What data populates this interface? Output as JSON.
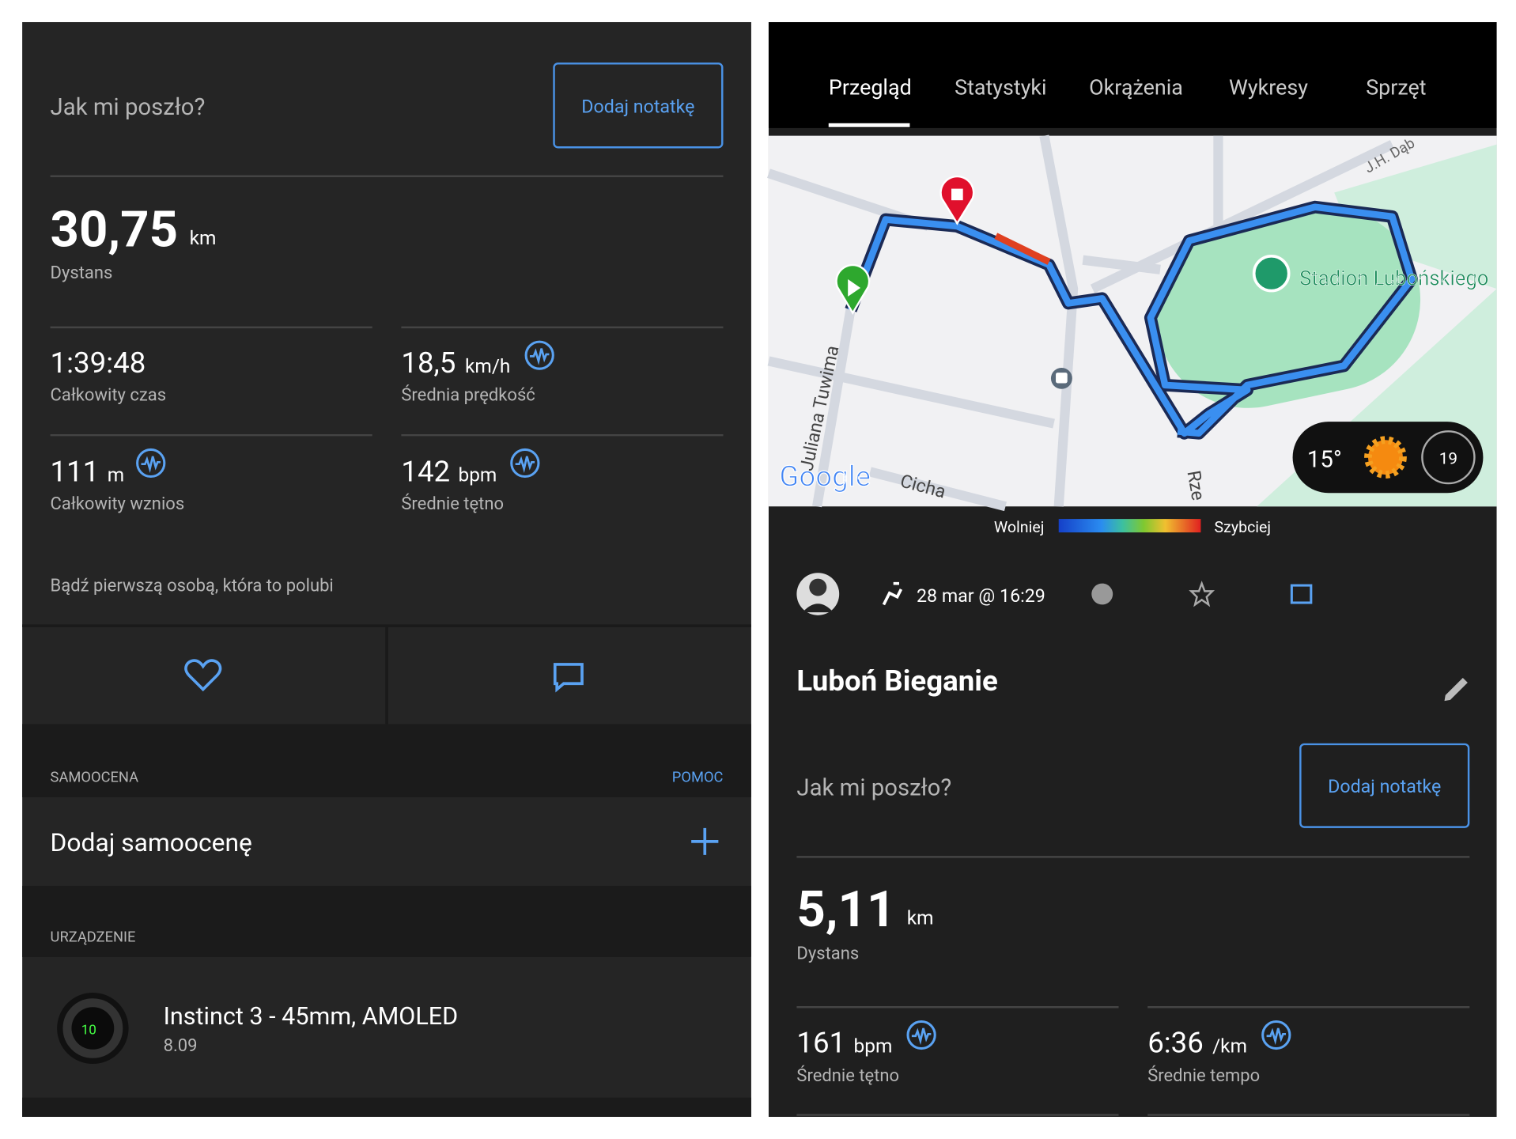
{
  "left": {
    "note_prompt": "Jak mi poszło?",
    "note_button": "Dodaj notatkę",
    "distance": {
      "value": "30,75",
      "unit": "km",
      "label": "Dystans"
    },
    "stats": [
      {
        "value": "1:39:48",
        "label": "Całkowity czas"
      },
      {
        "value": "18,5",
        "unit": "km/h",
        "label": "Średnia prędkość"
      },
      {
        "value": "111",
        "unit": "m",
        "label": "Całkowity wznios"
      },
      {
        "value": "142",
        "unit": "bpm",
        "label": "Średnie tętno"
      }
    ],
    "like_prompt": "Bądź pierwszą osobą, która to polubi",
    "self_eval": {
      "header": "SAMOOCENA",
      "help": "POMOC",
      "action": "Dodaj samoocenę"
    },
    "device": {
      "header": "URZĄDZENIE",
      "name": "Instinct 3 - 45mm, AMOLED",
      "version": "8.09"
    }
  },
  "right": {
    "tabs": [
      "Przegląd",
      "Statystyki",
      "Okrążenia",
      "Wykresy",
      "Sprzęt"
    ],
    "map": {
      "streets": [
        "J.H. Dąb",
        "Juliana Tuwima",
        "Cicha",
        "Rze"
      ],
      "place": "Stadion Lubońskiego",
      "logo": "Google",
      "temperature": "15°",
      "wind": "19"
    },
    "legend": {
      "slow": "Wolniej",
      "fast": "Szybciej"
    },
    "date": "28 mar @ 16:29",
    "title": "Luboń Bieganie",
    "note_prompt": "Jak mi poszło?",
    "note_button": "Dodaj notatkę",
    "distance": {
      "value": "5,11",
      "unit": "km",
      "label": "Dystans"
    },
    "stats": [
      {
        "value": "161",
        "unit": "bpm",
        "label": "Średnie tętno"
      },
      {
        "value": "6:36",
        "unit": "/km",
        "label": "Średnie tempo"
      }
    ]
  }
}
